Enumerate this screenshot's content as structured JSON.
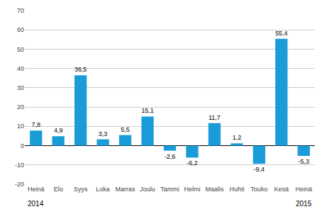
{
  "chart_data": {
    "type": "bar",
    "categories": [
      "Heinä",
      "Elo",
      "Syys",
      "Loka",
      "Marras",
      "Joulu",
      "Tammi",
      "Helmi",
      "Maalis",
      "Huhti",
      "Touko",
      "Kesä",
      "Heinä"
    ],
    "values": [
      7.8,
      4.9,
      36.5,
      3.3,
      5.5,
      15.1,
      -2.6,
      -6.2,
      11.7,
      1.2,
      -9.4,
      55.4,
      -5.3
    ],
    "value_labels": [
      "7,8",
      "4,9",
      "36,5",
      "3,3",
      "5,5",
      "15,1",
      "-2,6",
      "-6,2",
      "11,7",
      "1,2",
      "-9,4",
      "55,4",
      "-5,3"
    ],
    "data_labels": true,
    "color": "#1a9cd8",
    "ylim": [
      -20,
      70
    ],
    "yticks": [
      -20,
      -10,
      0,
      10,
      20,
      30,
      40,
      50,
      60,
      70
    ],
    "grid": true,
    "annotations": [
      {
        "text": "2014",
        "x": 0
      },
      {
        "text": "2015",
        "x": 12
      }
    ]
  }
}
